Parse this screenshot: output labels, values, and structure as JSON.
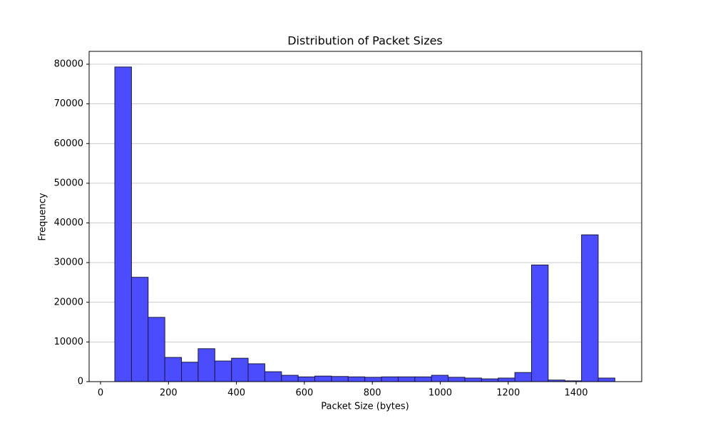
{
  "chart_data": {
    "type": "histogram",
    "title": "Distribution of Packet Sizes",
    "xlabel": "Packet Size (bytes)",
    "ylabel": "Frequency",
    "bins": [
      42,
      91.1,
      140.1,
      189.2,
      238.3,
      287.3,
      336.4,
      385.5,
      434.5,
      483.6,
      532.7,
      581.7,
      630.8,
      679.9,
      728.9,
      778,
      827.1,
      876.1,
      925.2,
      974.3,
      1023.3,
      1072.4,
      1121.5,
      1170.5,
      1219.6,
      1268.7,
      1317.7,
      1366.8,
      1415.9,
      1464.9,
      1514
    ],
    "values": [
      79300,
      26300,
      16200,
      6100,
      4900,
      8300,
      5200,
      5900,
      4500,
      2500,
      1600,
      1200,
      1400,
      1300,
      1200,
      1100,
      1200,
      1200,
      1200,
      1600,
      1100,
      900,
      700,
      900,
      2300,
      29400,
      400,
      200,
      37000,
      900
    ],
    "color": "#4c4cff",
    "edgecolor": "#1a1a40",
    "xlim": [
      -33.6,
      1593
    ],
    "xticks": [
      0,
      200,
      400,
      600,
      800,
      1000,
      1200,
      1400
    ],
    "ylim": [
      0,
      83240
    ],
    "yticks": [
      0,
      10000,
      20000,
      30000,
      40000,
      50000,
      60000,
      70000,
      80000
    ],
    "grid": "y"
  }
}
